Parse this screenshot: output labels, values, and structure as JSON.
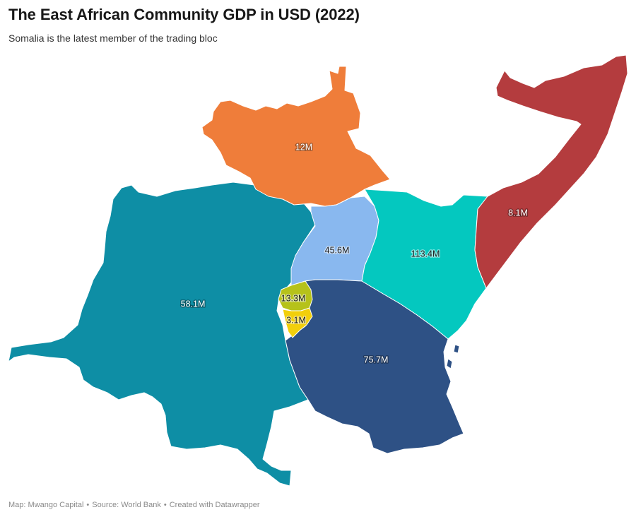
{
  "header": {
    "title": "The East African Community GDP in USD (2022)",
    "subtitle": "Somalia is the latest member of the trading bloc"
  },
  "map": {
    "regions": [
      {
        "id": "drc",
        "value_label": "58.1M",
        "color": "#0e8ea5"
      },
      {
        "id": "south-sudan",
        "value_label": "12M",
        "color": "#ef7d3a"
      },
      {
        "id": "uganda",
        "value_label": "45.6M",
        "color": "#89b8ef"
      },
      {
        "id": "kenya",
        "value_label": "113.4M",
        "color": "#04c8bf"
      },
      {
        "id": "somalia",
        "value_label": "8.1M",
        "color": "#b43c3e"
      },
      {
        "id": "tanzania",
        "value_label": "75.7M",
        "color": "#2e5185"
      },
      {
        "id": "rwanda",
        "value_label": "13.3M",
        "color": "#b6c21a"
      },
      {
        "id": "burundi",
        "value_label": "3.1M",
        "color": "#f2cf0b"
      }
    ]
  },
  "footer": {
    "map_credit": "Map: Mwango Capital",
    "source": "Source: World Bank",
    "created_with": "Created with Datawrapper",
    "separator": "•"
  }
}
